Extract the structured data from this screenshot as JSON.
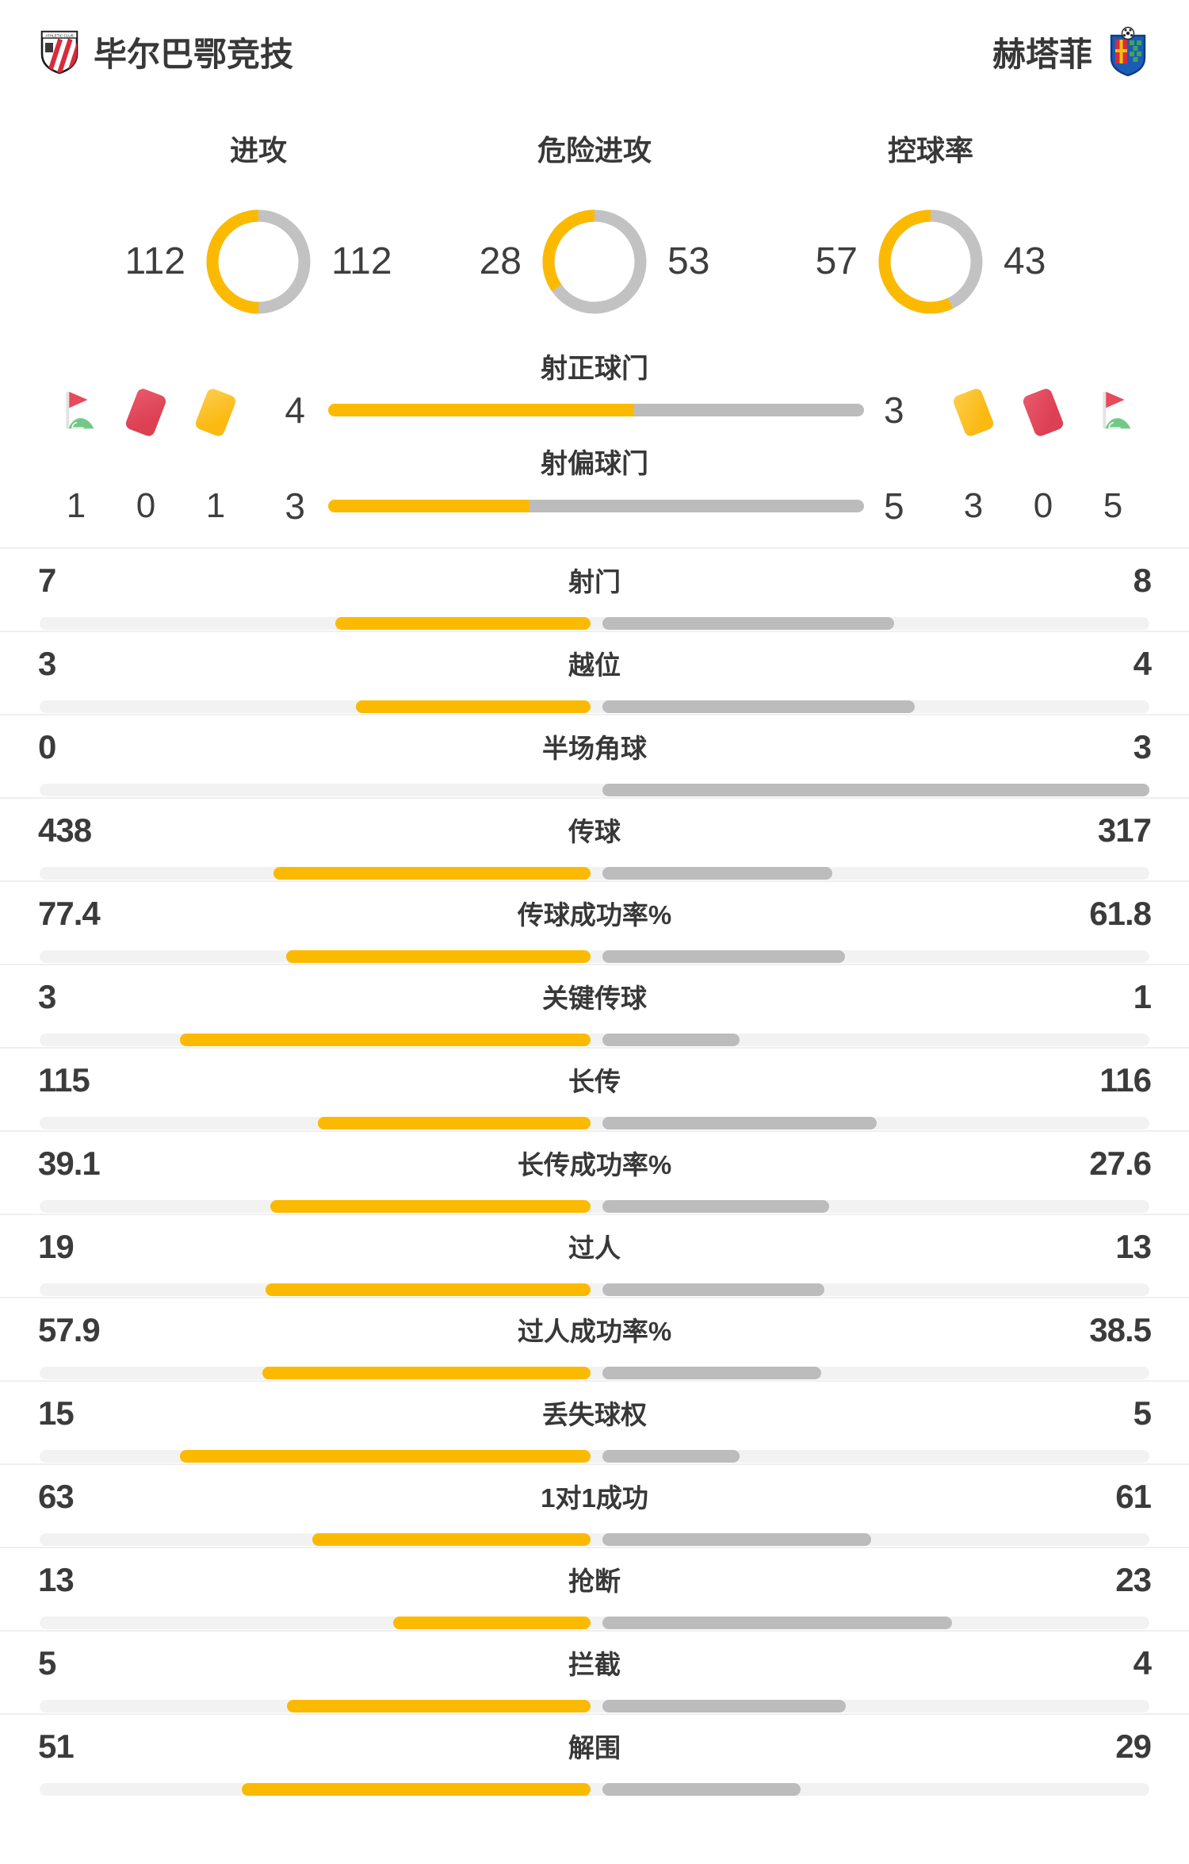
{
  "teams": {
    "home": {
      "name": "毕尔巴鄂竞技",
      "logo": "athletic-club-crest"
    },
    "away": {
      "name": "赫塔菲",
      "logo": "getafe-crest"
    }
  },
  "colors": {
    "home_accent": "#FBBA00",
    "away_accent": "#BCBCBC",
    "track": "#F2F2F2",
    "separator": "#EFEFEF",
    "text": "#3B3B3B",
    "red_card": "#DC4053",
    "yellow_card": "#FBB912",
    "flag_red": "#E8495B",
    "flag_green": "#72C886"
  },
  "overview_donuts": [
    {
      "label": "进攻",
      "home": 112,
      "away": 112
    },
    {
      "label": "危险进攻",
      "home": 28,
      "away": 53
    },
    {
      "label": "控球率",
      "home": 57,
      "away": 43
    }
  ],
  "shot_rows": [
    {
      "label": "射正球门",
      "home": 4,
      "away": 3
    },
    {
      "label": "射偏球门",
      "home": 3,
      "away": 5
    }
  ],
  "discipline": {
    "home": {
      "icons": [
        "corner-flag",
        "red-card",
        "yellow-card"
      ],
      "counts": [
        1,
        0,
        1
      ]
    },
    "away": {
      "icons": [
        "yellow-card",
        "red-card",
        "corner-flag"
      ],
      "counts": [
        3,
        0,
        5
      ]
    }
  },
  "stat_rows": [
    {
      "label": "射门",
      "home": 7,
      "away": 8
    },
    {
      "label": "越位",
      "home": 3,
      "away": 4
    },
    {
      "label": "半场角球",
      "home": 0,
      "away": 3
    },
    {
      "label": "传球",
      "home": 438,
      "away": 317
    },
    {
      "label": "传球成功率%",
      "home": 77.4,
      "away": 61.8
    },
    {
      "label": "关键传球",
      "home": 3,
      "away": 1
    },
    {
      "label": "长传",
      "home": 115,
      "away": 116
    },
    {
      "label": "长传成功率%",
      "home": 39.1,
      "away": 27.6
    },
    {
      "label": "过人",
      "home": 19,
      "away": 13
    },
    {
      "label": "过人成功率%",
      "home": 57.9,
      "away": 38.5
    },
    {
      "label": "丢失球权",
      "home": 15,
      "away": 5
    },
    {
      "label": "1对1成功",
      "home": 63,
      "away": 61
    },
    {
      "label": "抢断",
      "home": 13,
      "away": 23
    },
    {
      "label": "拦截",
      "home": 5,
      "away": 4
    },
    {
      "label": "解围",
      "home": 51,
      "away": 29
    }
  ],
  "chart_data": [
    {
      "type": "pie",
      "title": "进攻",
      "categories": [
        "毕尔巴鄂竞技",
        "赫塔菲"
      ],
      "values": [
        112,
        112
      ]
    },
    {
      "type": "pie",
      "title": "危险进攻",
      "categories": [
        "毕尔巴鄂竞技",
        "赫塔菲"
      ],
      "values": [
        28,
        53
      ]
    },
    {
      "type": "pie",
      "title": "控球率",
      "categories": [
        "毕尔巴鄂竞技",
        "赫塔菲"
      ],
      "values": [
        57,
        43
      ]
    },
    {
      "type": "bar",
      "title": "比赛数据对比",
      "categories": [
        "射正球门",
        "射偏球门",
        "射门",
        "越位",
        "半场角球",
        "传球",
        "传球成功率%",
        "关键传球",
        "长传",
        "长传成功率%",
        "过人",
        "过人成功率%",
        "丢失球权",
        "1对1成功",
        "抢断",
        "拦截",
        "解围"
      ],
      "series": [
        {
          "name": "毕尔巴鄂竞技",
          "values": [
            4,
            3,
            7,
            3,
            0,
            438,
            77.4,
            3,
            115,
            39.1,
            19,
            57.9,
            15,
            63,
            13,
            5,
            51
          ]
        },
        {
          "name": "赫塔菲",
          "values": [
            3,
            5,
            8,
            4,
            3,
            317,
            61.8,
            1,
            116,
            27.6,
            13,
            38.5,
            5,
            61,
            23,
            4,
            29
          ]
        }
      ],
      "legend_position": "none",
      "grid": false
    },
    {
      "type": "bar",
      "title": "角旗与红黄牌",
      "categories": [
        "角旗",
        "红牌",
        "黄牌"
      ],
      "series": [
        {
          "name": "毕尔巴鄂竞技",
          "values": [
            1,
            0,
            1
          ]
        },
        {
          "name": "赫塔菲",
          "values": [
            5,
            0,
            3
          ]
        }
      ]
    }
  ]
}
